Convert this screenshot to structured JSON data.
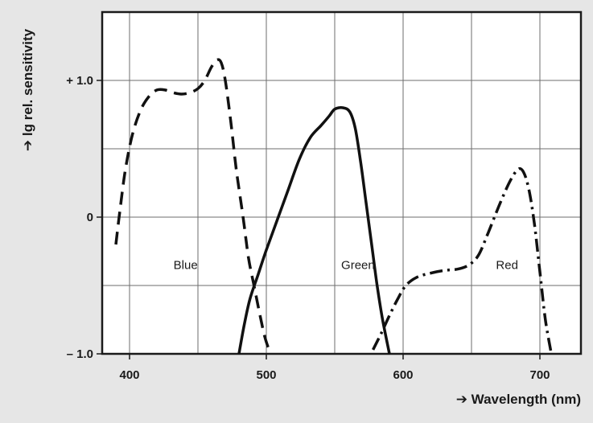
{
  "chart_data": {
    "type": "line",
    "title": "",
    "xlabel": "➔ Wavelength (nm)",
    "ylabel": "➔ lg rel. sensitivity",
    "xlim": [
      380,
      730
    ],
    "ylim": [
      -1.0,
      1.5
    ],
    "grid": true,
    "x_ticks": [
      400,
      500,
      600,
      700
    ],
    "x_tick_labels": [
      "400",
      "500",
      "600",
      "700"
    ],
    "x_grid": [
      400,
      450,
      500,
      550,
      600,
      650,
      700
    ],
    "y_ticks": [
      1.0,
      0,
      -1.0
    ],
    "y_tick_labels": [
      "+ 1.0",
      "0",
      "– 1.0"
    ],
    "y_grid": [
      1.0,
      0.5,
      0,
      -0.5
    ],
    "series": [
      {
        "name": "Blue",
        "style": "dashed",
        "points": [
          [
            390,
            -0.2
          ],
          [
            393,
            0.05
          ],
          [
            397,
            0.35
          ],
          [
            402,
            0.6
          ],
          [
            408,
            0.78
          ],
          [
            414,
            0.88
          ],
          [
            420,
            0.93
          ],
          [
            426,
            0.93
          ],
          [
            432,
            0.91
          ],
          [
            438,
            0.9
          ],
          [
            444,
            0.91
          ],
          [
            450,
            0.94
          ],
          [
            455,
            1.0
          ],
          [
            460,
            1.1
          ],
          [
            464,
            1.15
          ],
          [
            467,
            1.13
          ],
          [
            470,
            1.0
          ],
          [
            474,
            0.7
          ],
          [
            478,
            0.35
          ],
          [
            483,
            0.0
          ],
          [
            487,
            -0.3
          ],
          [
            491,
            -0.5
          ],
          [
            495,
            -0.7
          ],
          [
            499,
            -0.88
          ],
          [
            503,
            -1.0
          ]
        ]
      },
      {
        "name": "Green",
        "style": "solid",
        "points": [
          [
            480,
            -1.0
          ],
          [
            484,
            -0.78
          ],
          [
            488,
            -0.6
          ],
          [
            494,
            -0.42
          ],
          [
            500,
            -0.24
          ],
          [
            508,
            -0.02
          ],
          [
            516,
            0.2
          ],
          [
            524,
            0.42
          ],
          [
            532,
            0.58
          ],
          [
            540,
            0.67
          ],
          [
            546,
            0.74
          ],
          [
            550,
            0.79
          ],
          [
            556,
            0.8
          ],
          [
            561,
            0.77
          ],
          [
            565,
            0.65
          ],
          [
            569,
            0.4
          ],
          [
            573,
            0.1
          ],
          [
            577,
            -0.2
          ],
          [
            581,
            -0.5
          ],
          [
            585,
            -0.75
          ],
          [
            590,
            -1.0
          ]
        ]
      },
      {
        "name": "Red",
        "style": "dashdot",
        "points": [
          [
            578,
            -0.97
          ],
          [
            584,
            -0.85
          ],
          [
            590,
            -0.72
          ],
          [
            596,
            -0.6
          ],
          [
            602,
            -0.5
          ],
          [
            610,
            -0.44
          ],
          [
            620,
            -0.41
          ],
          [
            630,
            -0.39
          ],
          [
            640,
            -0.38
          ],
          [
            648,
            -0.35
          ],
          [
            655,
            -0.28
          ],
          [
            662,
            -0.12
          ],
          [
            670,
            0.08
          ],
          [
            678,
            0.26
          ],
          [
            684,
            0.35
          ],
          [
            688,
            0.33
          ],
          [
            692,
            0.2
          ],
          [
            696,
            -0.05
          ],
          [
            700,
            -0.4
          ],
          [
            704,
            -0.75
          ],
          [
            708,
            -0.98
          ]
        ]
      }
    ],
    "annotations": [
      {
        "text": "Blue",
        "x": 441,
        "y": -0.38
      },
      {
        "text": "Green",
        "x": 567,
        "y": -0.38
      },
      {
        "text": "Red",
        "x": 676,
        "y": -0.38
      }
    ]
  }
}
